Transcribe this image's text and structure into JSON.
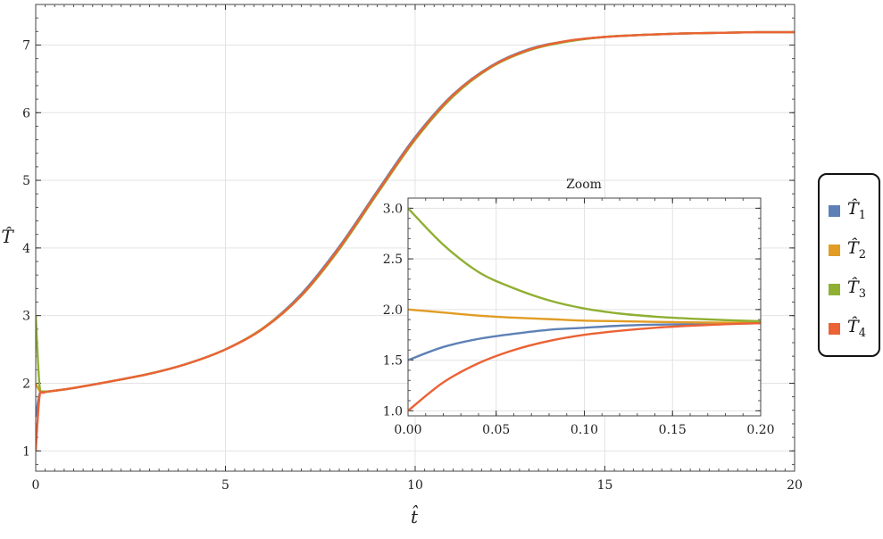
{
  "chart_data": [
    {
      "type": "line",
      "xlabel": "t̂",
      "ylabel": "T̂",
      "xlim": [
        0,
        20
      ],
      "ylim": [
        0.7,
        7.6
      ],
      "xticks": [
        0,
        5,
        10,
        15,
        20
      ],
      "yticks": [
        1,
        2,
        3,
        4,
        5,
        6,
        7
      ],
      "grid": true,
      "legend": "right",
      "series": [
        {
          "name": "T̂1",
          "color": "#5e81b5",
          "x": [
            0,
            0.1,
            0.2,
            0.5,
            1,
            2,
            3,
            4,
            5,
            6,
            7,
            8,
            9,
            10,
            11,
            12,
            13,
            14,
            15,
            16,
            17,
            18,
            19,
            20
          ],
          "y": [
            1.5,
            1.84,
            1.87,
            1.89,
            1.93,
            2.03,
            2.14,
            2.29,
            2.5,
            2.82,
            3.32,
            4.02,
            4.84,
            5.64,
            6.27,
            6.69,
            6.94,
            7.06,
            7.12,
            7.15,
            7.17,
            7.18,
            7.19,
            7.19
          ]
        },
        {
          "name": "T̂2",
          "color": "#e19c24",
          "x": [
            0,
            0.1,
            0.2,
            0.5,
            1,
            2,
            3,
            4,
            5,
            6,
            7,
            8,
            9,
            10,
            11,
            12,
            13,
            14,
            15,
            16,
            17,
            18,
            19,
            20
          ],
          "y": [
            2.0,
            1.89,
            1.87,
            1.89,
            1.93,
            2.03,
            2.14,
            2.29,
            2.5,
            2.82,
            3.3,
            4.0,
            4.82,
            5.62,
            6.26,
            6.68,
            6.93,
            7.06,
            7.12,
            7.15,
            7.17,
            7.18,
            7.19,
            7.19
          ]
        },
        {
          "name": "T̂3",
          "color": "#8fb032",
          "x": [
            0,
            0.1,
            0.2,
            0.5,
            1,
            2,
            3,
            4,
            5,
            6,
            7,
            8,
            9,
            10,
            11,
            12,
            13,
            14,
            15,
            16,
            17,
            18,
            19,
            20
          ],
          "y": [
            3.0,
            1.97,
            1.88,
            1.89,
            1.93,
            2.03,
            2.14,
            2.29,
            2.5,
            2.81,
            3.29,
            3.98,
            4.8,
            5.6,
            6.24,
            6.67,
            6.92,
            7.05,
            7.12,
            7.15,
            7.17,
            7.18,
            7.19,
            7.19
          ]
        },
        {
          "name": "T̂4",
          "color": "#eb6235",
          "x": [
            0,
            0.1,
            0.2,
            0.5,
            1,
            2,
            3,
            4,
            5,
            6,
            7,
            8,
            9,
            10,
            11,
            12,
            13,
            14,
            15,
            16,
            17,
            18,
            19,
            20
          ],
          "y": [
            1.0,
            1.8,
            1.86,
            1.89,
            1.93,
            2.03,
            2.14,
            2.29,
            2.5,
            2.81,
            3.3,
            4.0,
            4.82,
            5.62,
            6.26,
            6.68,
            6.93,
            7.06,
            7.12,
            7.15,
            7.17,
            7.18,
            7.19,
            7.19
          ]
        }
      ]
    },
    {
      "type": "line",
      "title": "Zoom",
      "xlim": [
        0,
        0.2
      ],
      "ylim": [
        0.95,
        3.1
      ],
      "xticks": [
        0.0,
        0.05,
        0.1,
        0.15,
        0.2
      ],
      "yticks": [
        1.0,
        1.5,
        2.0,
        2.5,
        3.0
      ],
      "xtick_labels": [
        "0.00",
        "0.05",
        "0.10",
        "0.15",
        "0.20"
      ],
      "ytick_labels": [
        "1.0",
        "1.5",
        "2.0",
        "2.5",
        "3.0"
      ],
      "grid": true,
      "series": [
        {
          "name": "T̂1",
          "color": "#5e81b5",
          "x": [
            0,
            0.02,
            0.04,
            0.06,
            0.08,
            0.1,
            0.12,
            0.14,
            0.16,
            0.18,
            0.2
          ],
          "y": [
            1.5,
            1.63,
            1.71,
            1.76,
            1.8,
            1.82,
            1.84,
            1.85,
            1.855,
            1.86,
            1.865
          ]
        },
        {
          "name": "T̂2",
          "color": "#e19c24",
          "x": [
            0,
            0.02,
            0.04,
            0.06,
            0.08,
            0.1,
            0.12,
            0.14,
            0.16,
            0.18,
            0.2
          ],
          "y": [
            2.0,
            1.97,
            1.94,
            1.92,
            1.905,
            1.89,
            1.885,
            1.878,
            1.873,
            1.87,
            1.868
          ]
        },
        {
          "name": "T̂3",
          "color": "#8fb032",
          "x": [
            0,
            0.02,
            0.04,
            0.06,
            0.08,
            0.1,
            0.12,
            0.14,
            0.16,
            0.18,
            0.2
          ],
          "y": [
            3.0,
            2.64,
            2.37,
            2.21,
            2.09,
            2.01,
            1.96,
            1.93,
            1.91,
            1.895,
            1.885
          ]
        },
        {
          "name": "T̂4",
          "color": "#eb6235",
          "x": [
            0,
            0.02,
            0.04,
            0.06,
            0.08,
            0.1,
            0.12,
            0.14,
            0.16,
            0.18,
            0.2
          ],
          "y": [
            1.0,
            1.28,
            1.47,
            1.6,
            1.69,
            1.75,
            1.79,
            1.82,
            1.84,
            1.855,
            1.865
          ]
        }
      ]
    }
  ],
  "legend": {
    "items": [
      {
        "base": "T̂",
        "sub": "1",
        "color": "#5e81b5"
      },
      {
        "base": "T̂",
        "sub": "2",
        "color": "#e19c24"
      },
      {
        "base": "T̂",
        "sub": "3",
        "color": "#8fb032"
      },
      {
        "base": "T̂",
        "sub": "4",
        "color": "#eb6235"
      }
    ]
  }
}
